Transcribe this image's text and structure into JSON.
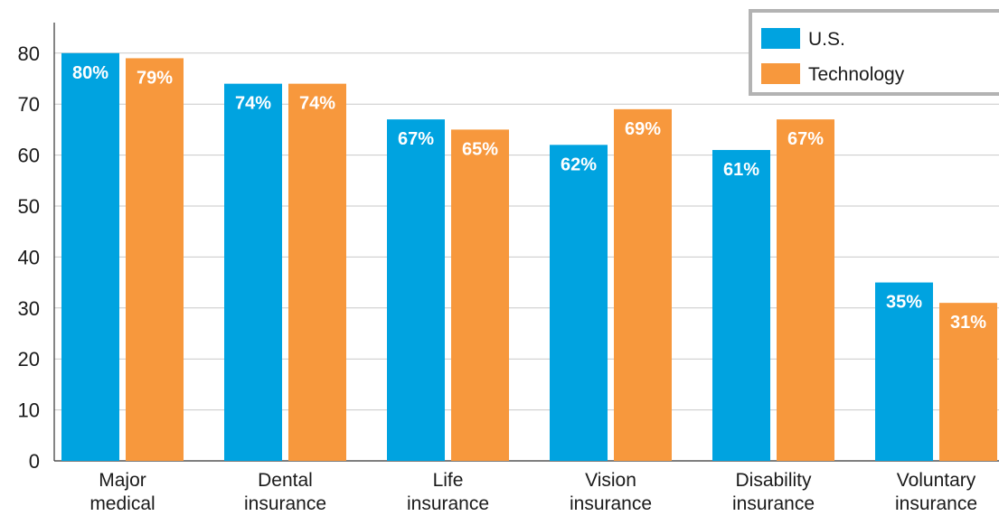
{
  "chart_data": {
    "type": "bar",
    "categories": [
      [
        "Major",
        "medical"
      ],
      [
        "Dental",
        "insurance"
      ],
      [
        "Life",
        "insurance"
      ],
      [
        "Vision",
        "insurance"
      ],
      [
        "Disability",
        "insurance"
      ],
      [
        "Voluntary",
        "insurance"
      ]
    ],
    "series": [
      {
        "name": "U.S.",
        "color": "#00a3e0",
        "values": [
          80,
          74,
          67,
          62,
          61,
          35
        ],
        "labels": [
          "80%",
          "74%",
          "67%",
          "62%",
          "61%",
          "35%"
        ]
      },
      {
        "name": "Technology",
        "color": "#f7983d",
        "values": [
          79,
          74,
          65,
          69,
          67,
          31
        ],
        "labels": [
          "79%",
          "74%",
          "65%",
          "69%",
          "67%",
          "31%"
        ]
      }
    ],
    "yticks": [
      "0",
      "10",
      "20",
      "30",
      "40",
      "50",
      "60",
      "70",
      "80"
    ],
    "ylim": [
      0,
      90
    ],
    "grid": true,
    "legend_position": "top-right",
    "title": "",
    "xlabel": "",
    "ylabel": ""
  }
}
